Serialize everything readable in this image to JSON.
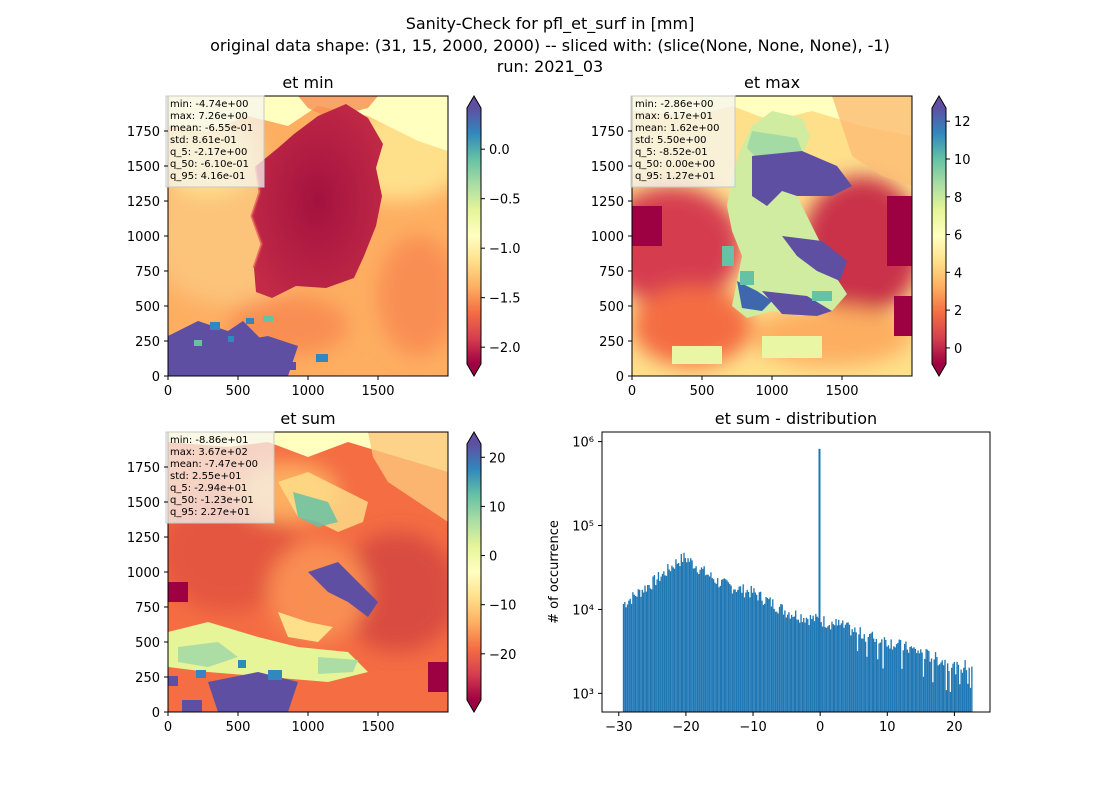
{
  "suptitle": {
    "line1": "Sanity-Check for pfl_et_surf in [mm]",
    "line2": "original data shape: (31, 15, 2000, 2000) -- sliced with: (slice(None, None, None), -1)",
    "line3": "run: 2021_03"
  },
  "colors": {
    "spectral": [
      "#9e0142",
      "#d53e4f",
      "#f46d43",
      "#fdae61",
      "#fee08b",
      "#ffffbf",
      "#e6f598",
      "#abdda4",
      "#66c2a5",
      "#3288bd",
      "#5e4fa2"
    ],
    "hist_fill": "#1f77b4",
    "frame": "#000000"
  },
  "panels": [
    {
      "title": "et min",
      "stats": [
        "min: -4.74e+00",
        "max: 7.26e+00",
        "mean: -6.55e-01",
        "std: 8.61e-01",
        "q_5: -2.17e+00",
        "q_50: -6.10e-01",
        "q_95: 4.16e-01"
      ],
      "xticks": [
        "0",
        "500",
        "1000",
        "1500"
      ],
      "yticks": [
        "0",
        "250",
        "500",
        "750",
        "1000",
        "1250",
        "1500",
        "1750"
      ],
      "colorbar": {
        "vmin": -2.17,
        "vmax": 0.416,
        "ticks": [
          "0.0",
          "−0.5",
          "−1.0",
          "−1.5",
          "−2.0"
        ],
        "tick_values": [
          0.0,
          -0.5,
          -1.0,
          -1.5,
          -2.0
        ]
      }
    },
    {
      "title": "et max",
      "stats": [
        "min: -2.86e+00",
        "max: 6.17e+01",
        "mean: 1.62e+00",
        "std: 5.50e+00",
        "q_5: -8.52e-01",
        "q_50: 0.00e+00",
        "q_95: 1.27e+01"
      ],
      "xticks": [
        "0",
        "500",
        "1000",
        "1500"
      ],
      "yticks": [
        "0",
        "250",
        "500",
        "750",
        "1000",
        "1250",
        "1500",
        "1750"
      ],
      "colorbar": {
        "vmin": -0.852,
        "vmax": 12.7,
        "ticks": [
          "12",
          "10",
          "8",
          "6",
          "4",
          "2",
          "0"
        ],
        "tick_values": [
          12,
          10,
          8,
          6,
          4,
          2,
          0
        ]
      }
    },
    {
      "title": "et sum",
      "stats": [
        "min: -8.86e+01",
        "max: 3.67e+02",
        "mean: -7.47e+00",
        "std: 2.55e+01",
        "q_5: -2.94e+01",
        "q_50: -1.23e+01",
        "q_95: 2.27e+01"
      ],
      "xticks": [
        "0",
        "500",
        "1000",
        "1500"
      ],
      "yticks": [
        "0",
        "250",
        "500",
        "750",
        "1000",
        "1250",
        "1500",
        "1750"
      ],
      "colorbar": {
        "vmin": -29.4,
        "vmax": 22.7,
        "ticks": [
          "20",
          "10",
          "0",
          "−10",
          "−20"
        ],
        "tick_values": [
          20,
          10,
          0,
          -10,
          -20
        ]
      }
    }
  ],
  "chart_data": {
    "type": "bar",
    "title": "et sum - distribution",
    "ylabel": "# of occurrence",
    "yscale": "log",
    "ylim": [
      600,
      1300000
    ],
    "xlim": [
      -32.5,
      25.3
    ],
    "xticks": [
      "−30",
      "−20",
      "−10",
      "0",
      "10",
      "20"
    ],
    "xtick_values": [
      -30,
      -20,
      -10,
      0,
      10,
      20
    ],
    "yticks": [
      "10³",
      "10⁴",
      "10⁵",
      "10⁶"
    ],
    "ytick_values": [
      1000,
      10000,
      100000,
      1000000
    ],
    "bins": {
      "start": -29.4,
      "end": 22.7,
      "count": 260
    },
    "spike": {
      "x": -0.1,
      "value": 820000
    },
    "envelope": [
      [
        -29.4,
        11500
      ],
      [
        -28.5,
        13000
      ],
      [
        -27.0,
        16000
      ],
      [
        -25.0,
        21000
      ],
      [
        -23.0,
        28000
      ],
      [
        -21.5,
        36000
      ],
      [
        -20.2,
        42000
      ],
      [
        -19.0,
        36000
      ],
      [
        -17.0,
        27000
      ],
      [
        -15.0,
        21000
      ],
      [
        -12.0,
        17500
      ],
      [
        -10.0,
        16000
      ],
      [
        -8.0,
        13000
      ],
      [
        -5.0,
        9500
      ],
      [
        -2.0,
        8000
      ],
      [
        0.0,
        7500
      ],
      [
        3.0,
        6500
      ],
      [
        6.0,
        5200
      ],
      [
        10.0,
        4200
      ],
      [
        14.0,
        3300
      ],
      [
        18.0,
        2500
      ],
      [
        20.5,
        2000
      ],
      [
        22.7,
        2300
      ]
    ]
  }
}
